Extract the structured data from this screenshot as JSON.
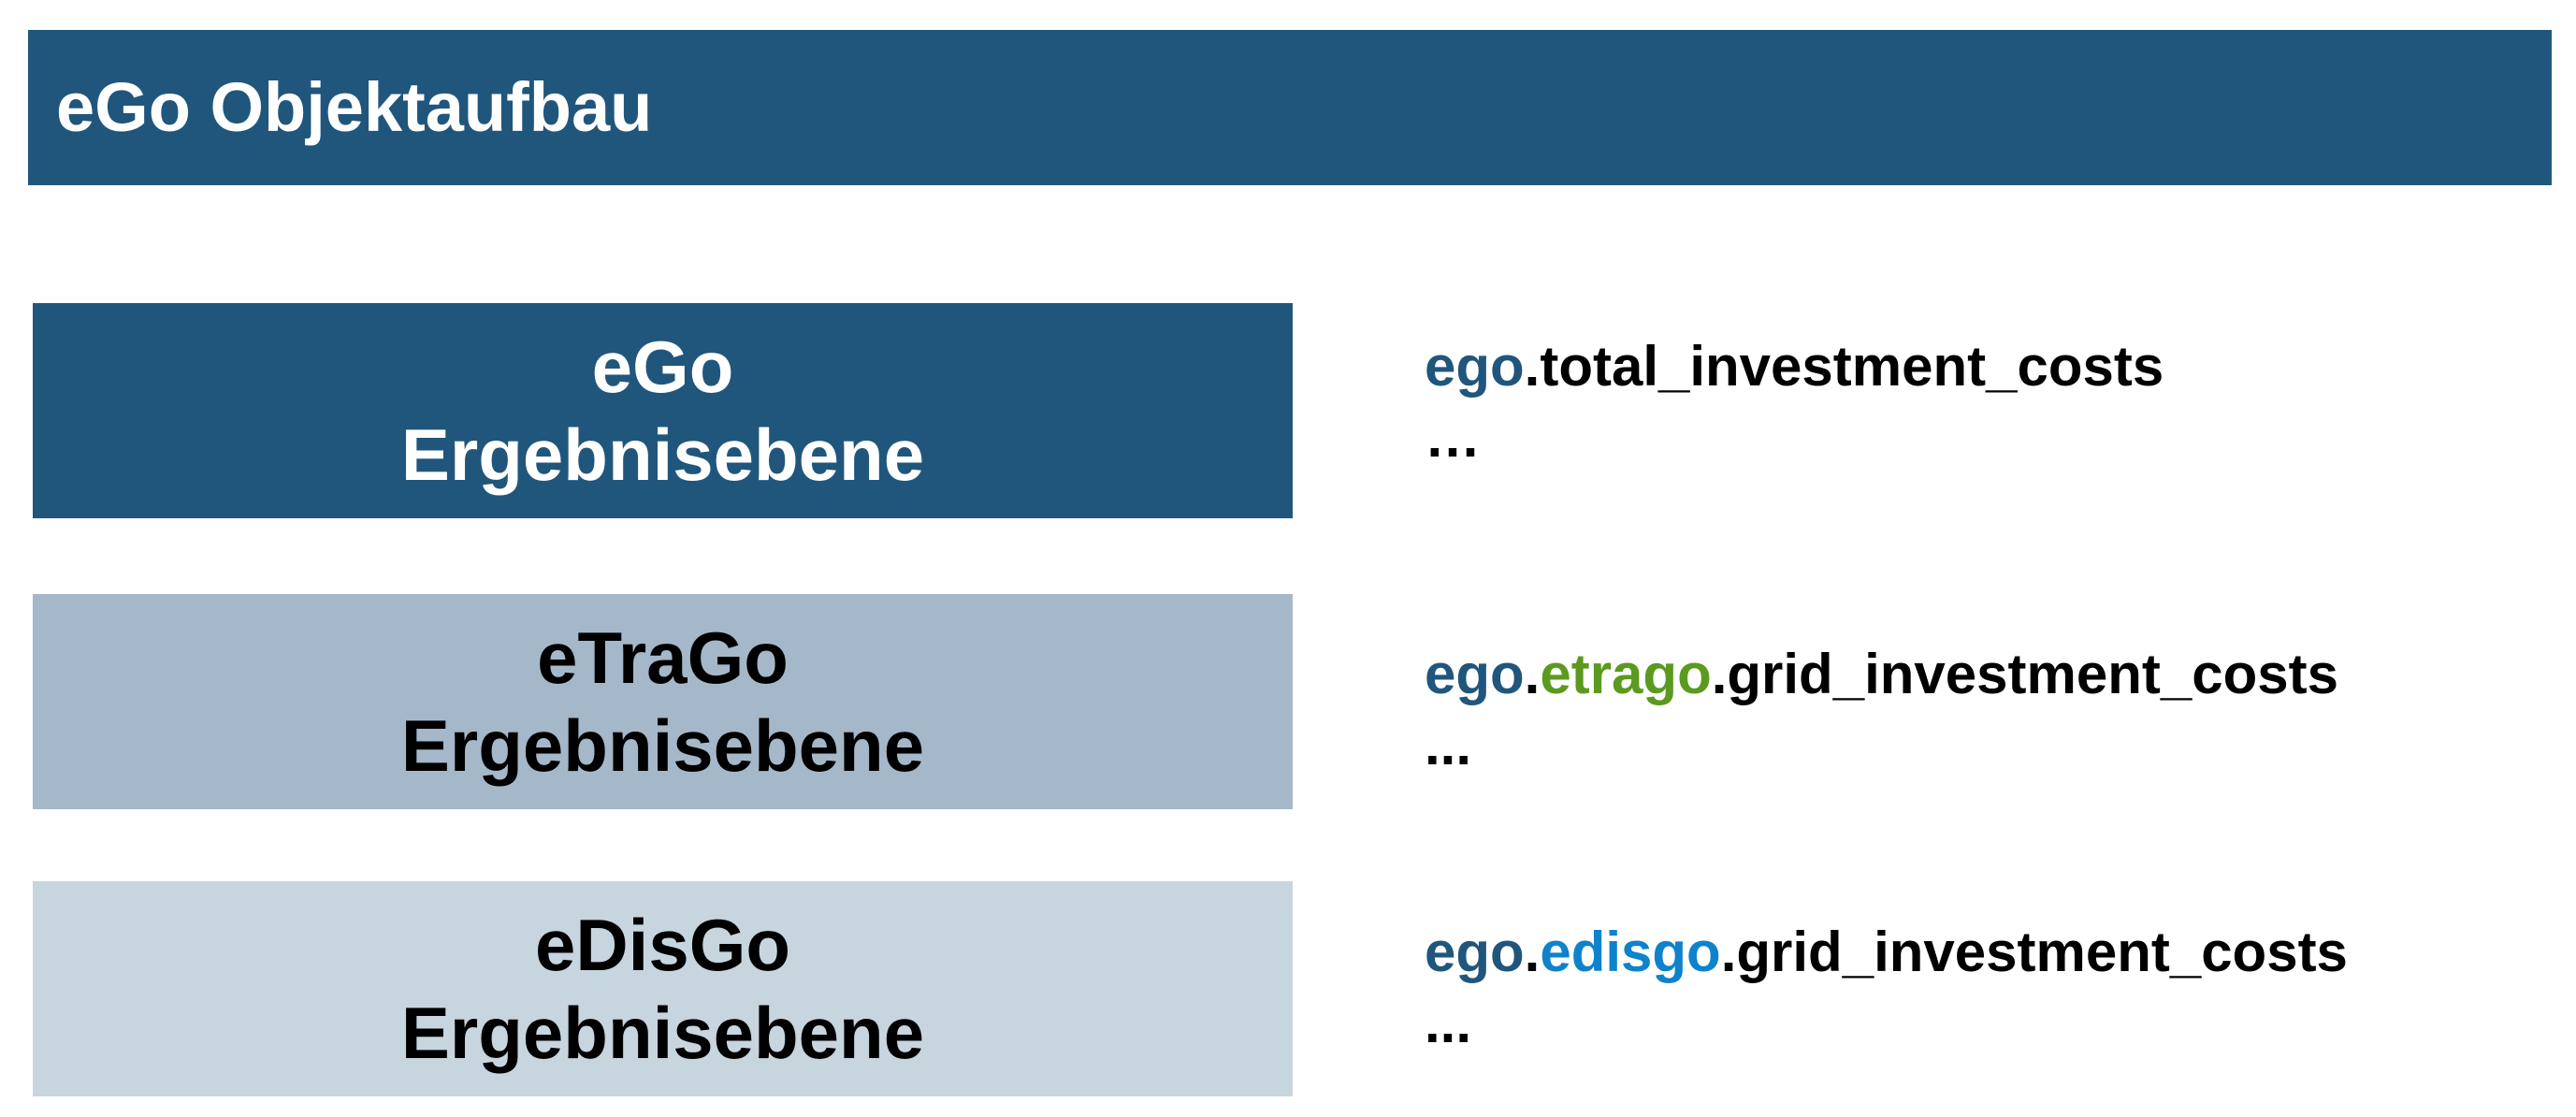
{
  "title": "eGo Objektaufbau",
  "levels": [
    {
      "name": "eGo",
      "subtitle": "Ergebnisebene",
      "attribute": {
        "root": "ego",
        "dot1": ".",
        "module": "",
        "dot2": "",
        "member": "total_investment_costs"
      },
      "ellipsis": "…"
    },
    {
      "name": "eTraGo",
      "subtitle": "Ergebnisebene",
      "attribute": {
        "root": "ego",
        "dot1": ".",
        "module": "etrago",
        "dot2": ".",
        "member": "grid_investment_costs"
      },
      "ellipsis": "..."
    },
    {
      "name": "eDisGo",
      "subtitle": "Ergebnisebene",
      "attribute": {
        "root": "ego",
        "dot1": ".",
        "module": "edisgo",
        "dot2": ".",
        "member": "grid_investment_costs"
      },
      "ellipsis": "..."
    }
  ],
  "colors": {
    "ego_dark_blue": "#20567c",
    "etrago_box": "#a5b8c9",
    "edisgo_box": "#c7d5df",
    "etrago_green": "#5b9a1f",
    "edisgo_blue": "#0f82cc"
  }
}
